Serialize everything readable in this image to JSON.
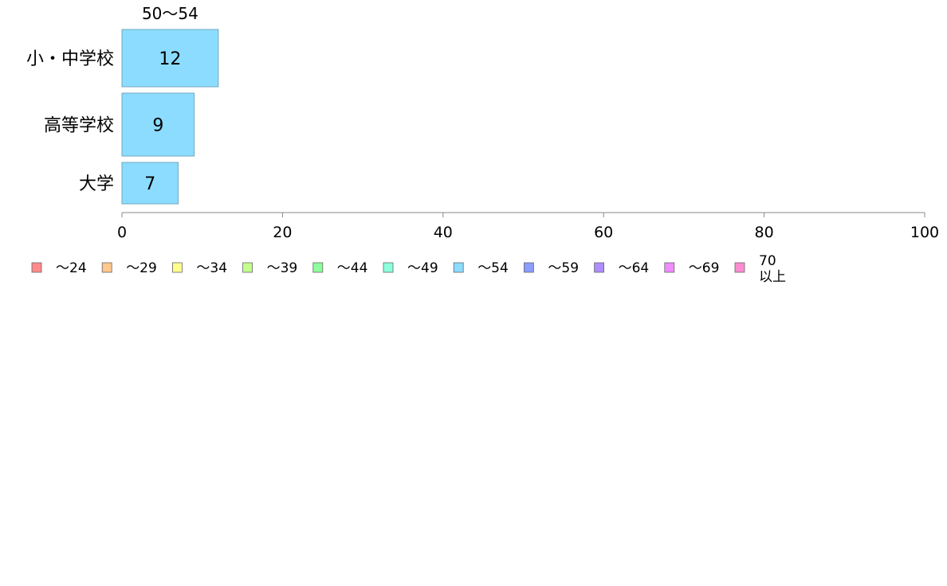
{
  "chart_data": {
    "type": "bar",
    "orientation": "horizontal",
    "series_label": "50〜54",
    "categories": [
      "小・中学校",
      "高等学校",
      "大学"
    ],
    "values": [
      12,
      9,
      7
    ],
    "bar_color": "#8cdcff",
    "xlim": [
      0,
      100
    ],
    "xticks": [
      0,
      20,
      40,
      60,
      80,
      100
    ],
    "grid": false,
    "legend_position": "bottom",
    "legend": [
      {
        "label": "〜24",
        "color": "#ff8a8a"
      },
      {
        "label": "〜29",
        "color": "#ffc88c"
      },
      {
        "label": "〜34",
        "color": "#ffff8c"
      },
      {
        "label": "〜39",
        "color": "#c4ff8c"
      },
      {
        "label": "〜44",
        "color": "#8cff9c"
      },
      {
        "label": "〜49",
        "color": "#8cffdc"
      },
      {
        "label": "〜54",
        "color": "#8cdcff"
      },
      {
        "label": "〜59",
        "color": "#8c9cff"
      },
      {
        "label": "〜64",
        "color": "#b08cff"
      },
      {
        "label": "〜69",
        "color": "#f08cff"
      },
      {
        "label": "70\n以上",
        "color": "#ff8cd0"
      }
    ]
  }
}
